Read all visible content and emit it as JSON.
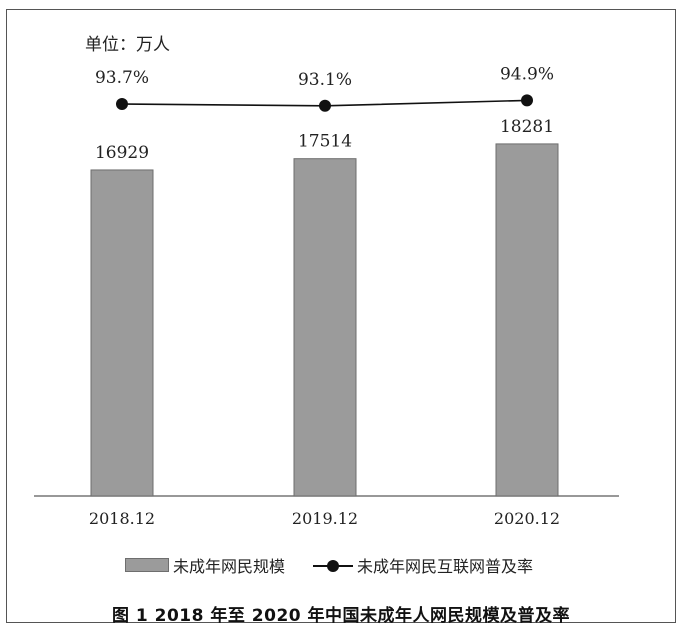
{
  "unit_label": "单位：万人",
  "legend": {
    "bar_label": "未成年网民规模",
    "line_label": "未成年网民互联网普及率"
  },
  "caption": "图 1   2018 年至 2020 年中国未成年人网民规模及普及率",
  "colors": {
    "bar_fill": "#9b9b9b",
    "bar_stroke": "#6e6e6e",
    "line": "#111111"
  },
  "chart_data": {
    "type": "bar",
    "categories": [
      "2018.12",
      "2019.12",
      "2020.12"
    ],
    "series": [
      {
        "name": "未成年网民规模",
        "type": "bar",
        "values": [
          16929,
          17514,
          18281
        ]
      },
      {
        "name": "未成年网民互联网普及率",
        "type": "line",
        "values": [
          93.7,
          93.1,
          94.9
        ],
        "labels": [
          "93.7%",
          "93.1%",
          "94.9%"
        ]
      }
    ],
    "bar_value_labels": [
      "16929",
      "17514",
      "18281"
    ],
    "ylim": [
      0,
      20000
    ],
    "grid": false,
    "legend_position": "bottom"
  }
}
